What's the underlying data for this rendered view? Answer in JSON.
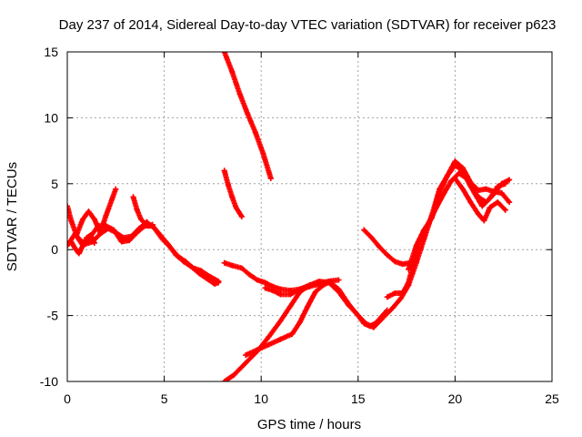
{
  "chart_data": {
    "type": "scatter",
    "title": "Day 237 of 2014, Sidereal Day-to-day VTEC variation (SDTVAR) for receiver p623",
    "xlabel": "GPS time / hours",
    "ylabel": "SDTVAR / TECUs",
    "xlim": [
      0,
      25
    ],
    "ylim": [
      -10,
      15
    ],
    "xticks": [
      0,
      5,
      10,
      15,
      20,
      25
    ],
    "yticks": [
      -10,
      -5,
      0,
      5,
      10,
      15
    ],
    "xtick_labels": [
      "0",
      "5",
      "10",
      "15",
      "20",
      "25"
    ],
    "ytick_labels": [
      "-10",
      "-5",
      "0",
      "5",
      "10",
      "15"
    ],
    "grid": true,
    "marker": "plus",
    "color": "#ff0000",
    "series": [
      {
        "x": [
          0.0,
          0.2,
          0.5,
          0.9,
          1.3,
          1.7,
          2.1,
          2.5,
          2.9,
          3.3,
          3.7,
          4.1,
          4.5,
          4.9,
          5.3,
          5.7,
          6.1,
          6.5,
          6.9,
          7.3,
          7.8
        ],
        "y": [
          3.3,
          2.2,
          1.0,
          0.4,
          0.6,
          1.2,
          1.6,
          1.3,
          0.9,
          1.0,
          1.6,
          2.1,
          1.6,
          0.8,
          0.2,
          -0.5,
          -0.9,
          -1.4,
          -1.6,
          -2.0,
          -2.4
        ]
      },
      {
        "x": [
          0.0,
          0.4,
          0.8,
          1.2,
          1.6,
          2.0,
          2.4,
          2.8,
          3.2,
          3.6,
          4.0,
          4.4,
          4.8,
          5.2,
          5.6,
          6.0,
          6.4,
          6.8,
          7.2,
          7.6,
          7.8
        ],
        "y": [
          0.3,
          1.2,
          0.3,
          1.0,
          1.8,
          1.8,
          1.5,
          0.6,
          0.7,
          1.3,
          1.8,
          1.8,
          1.1,
          0.4,
          -0.4,
          -0.9,
          -1.3,
          -1.8,
          -2.2,
          -2.6,
          -2.5
        ]
      },
      {
        "x": [
          0.2,
          0.4,
          0.6,
          0.8,
          1.0,
          1.2,
          1.4
        ],
        "y": [
          0.6,
          0.1,
          -0.3,
          0.3,
          0.9,
          1.1,
          0.5
        ]
      },
      {
        "x": [
          0.5,
          0.8,
          1.1,
          1.4,
          1.7,
          2.0,
          2.3,
          2.5
        ],
        "y": [
          1.2,
          2.3,
          2.9,
          2.3,
          1.3,
          2.6,
          3.8,
          4.6
        ]
      },
      {
        "x": [
          3.4,
          3.6,
          3.8,
          4.0,
          4.2,
          4.4
        ],
        "y": [
          4.0,
          3.0,
          2.3,
          2.0,
          1.8,
          1.9
        ]
      },
      {
        "x": [
          8.1,
          8.5,
          8.9,
          9.3,
          9.7,
          10.1,
          10.5
        ],
        "y": [
          15.0,
          13.5,
          11.8,
          10.3,
          8.9,
          7.3,
          5.4
        ]
      },
      {
        "x": [
          8.1,
          8.3,
          8.5,
          8.7,
          9.0
        ],
        "y": [
          6.0,
          4.9,
          4.0,
          3.2,
          2.5
        ]
      },
      {
        "x": [
          8.1,
          8.5,
          9.0,
          9.4,
          9.8,
          10.2,
          10.6,
          11.0,
          11.5,
          12.0,
          12.5,
          13.0,
          13.5,
          14.0,
          14.5,
          15.0,
          15.3,
          15.6,
          15.9,
          16.2,
          16.5
        ],
        "y": [
          -1.0,
          -1.2,
          -1.4,
          -1.9,
          -2.3,
          -2.5,
          -2.8,
          -3.0,
          -3.1,
          -3.0,
          -2.8,
          -2.6,
          -2.4,
          -3.0,
          -4.1,
          -5.0,
          -5.6,
          -5.8,
          -5.6,
          -5.1,
          -4.6
        ]
      },
      {
        "x": [
          10.2,
          10.6,
          11.0,
          11.5,
          12.0,
          12.5,
          13.0,
          13.5,
          14.0,
          14.5,
          15.0,
          15.4,
          15.8,
          16.2
        ],
        "y": [
          -2.9,
          -3.1,
          -3.4,
          -3.4,
          -3.0,
          -2.7,
          -2.4,
          -2.5,
          -3.2,
          -4.2,
          -5.0,
          -5.6,
          -5.9,
          -5.3
        ]
      },
      {
        "x": [
          8.1,
          8.6,
          9.2,
          9.8,
          10.4,
          11.0,
          11.5,
          12.0,
          12.5,
          13.0,
          13.5,
          14.0
        ],
        "y": [
          -10.0,
          -9.5,
          -8.6,
          -7.7,
          -6.6,
          -5.4,
          -4.3,
          -3.2,
          -2.7,
          -2.6,
          -2.4,
          -2.3
        ]
      },
      {
        "x": [
          9.2,
          9.8,
          10.4,
          11.0,
          11.6,
          12.0,
          12.4,
          12.8,
          13.2,
          13.6
        ],
        "y": [
          -8.0,
          -7.6,
          -7.2,
          -6.8,
          -6.4,
          -5.5,
          -4.3,
          -3.2,
          -2.7,
          -2.4
        ]
      },
      {
        "x": [
          15.3,
          15.7,
          16.1,
          16.5,
          16.9,
          17.3,
          17.7,
          18.0
        ],
        "y": [
          1.5,
          0.9,
          0.2,
          -0.4,
          -0.9,
          -1.1,
          -1.0,
          -0.7
        ]
      },
      {
        "x": [
          16.0,
          16.4,
          16.8,
          17.2,
          17.6,
          18.0,
          18.4,
          18.8,
          19.2,
          19.6,
          20.0,
          20.4,
          20.8,
          21.2,
          21.6,
          22.0,
          22.4,
          22.8
        ],
        "y": [
          -5.5,
          -5.0,
          -4.4,
          -3.7,
          -2.7,
          -1.0,
          0.8,
          2.6,
          4.6,
          5.6,
          6.7,
          6.2,
          5.1,
          4.5,
          4.6,
          4.4,
          4.3,
          3.6
        ]
      },
      {
        "x": [
          16.5,
          16.9,
          17.3,
          17.6,
          17.9,
          18.2,
          18.6,
          19.0,
          19.4,
          19.8,
          20.2,
          20.6,
          21.0,
          21.4,
          21.8,
          22.2,
          22.6
        ],
        "y": [
          -3.6,
          -3.3,
          -3.3,
          -2.5,
          -0.8,
          0.8,
          1.9,
          3.1,
          4.2,
          5.2,
          5.8,
          5.4,
          4.3,
          3.3,
          3.9,
          4.8,
          5.0
        ]
      },
      {
        "x": [
          17.6,
          18.0,
          18.4,
          18.8,
          19.2,
          19.6,
          20.0,
          20.4,
          20.8,
          21.2,
          21.6,
          22.0,
          22.4,
          22.8
        ],
        "y": [
          -1.5,
          0.3,
          1.5,
          2.4,
          4.3,
          5.6,
          6.4,
          6.0,
          4.8,
          4.0,
          3.6,
          4.2,
          5.0,
          5.3
        ]
      },
      {
        "x": [
          20.0,
          20.4,
          20.8,
          21.2,
          21.5,
          21.8,
          22.2,
          22.6
        ],
        "y": [
          5.4,
          4.6,
          3.6,
          2.7,
          2.2,
          3.2,
          3.6,
          3.0
        ]
      }
    ]
  }
}
